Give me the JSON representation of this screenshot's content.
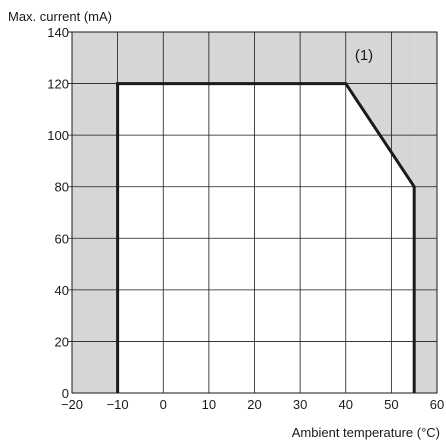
{
  "chart_data": {
    "type": "line",
    "ylabel": "Max. current (mA)",
    "xlabel": "Ambient temperature (°C)",
    "xlim": [
      -20,
      60
    ],
    "ylim": [
      0,
      140
    ],
    "x_ticks": [
      -20,
      -10,
      0,
      10,
      20,
      30,
      40,
      50,
      60
    ],
    "x_tick_labels": [
      "−20",
      "−10",
      "0",
      "10",
      "20",
      "30",
      "40",
      "50",
      "60"
    ],
    "y_ticks": [
      0,
      20,
      40,
      60,
      80,
      100,
      120,
      140
    ],
    "y_tick_labels": [
      "0",
      "20",
      "40",
      "60",
      "80",
      "100",
      "120",
      "140"
    ],
    "grid": true,
    "shaded_regions": [
      {
        "x": [
          -20,
          -10
        ],
        "y": [
          0,
          140
        ]
      },
      {
        "x": [
          55,
          60
        ],
        "y": [
          0,
          140
        ]
      },
      {
        "x": [
          -10,
          40
        ],
        "y": [
          120,
          140
        ]
      },
      {
        "x": [
          40,
          55
        ],
        "y": [
          80,
          140
        ],
        "upper_edge_from": [
          40,
          120
        ],
        "upper_edge_to": [
          55,
          80
        ]
      }
    ],
    "series": [
      {
        "x": [
          -10,
          -10,
          40,
          55,
          55
        ],
        "y": [
          0,
          120,
          120,
          80,
          0
        ]
      }
    ],
    "annotations": [
      {
        "text": "(1)",
        "x": 44,
        "y": 131
      }
    ],
    "colors": {
      "shade": "#d6d6d6",
      "line": "#1a1a1a",
      "grid": "#1a1a1a"
    }
  }
}
